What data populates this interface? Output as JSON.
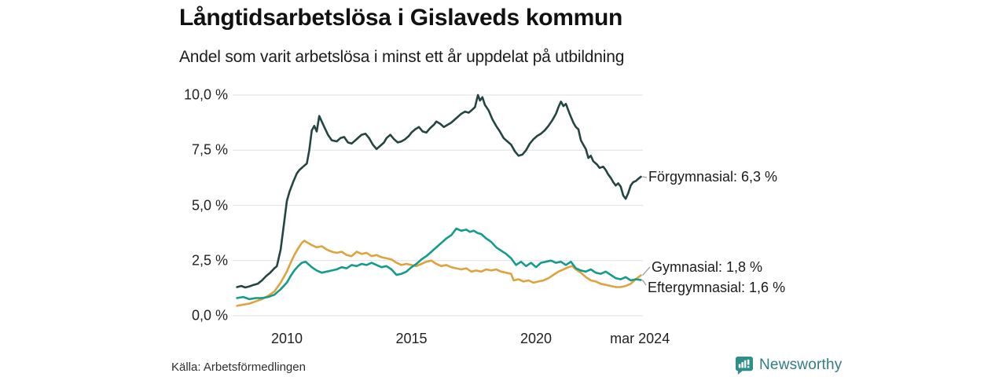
{
  "header": {
    "title": "Långtidsarbetslösa i Gislaveds kommun",
    "subtitle": "Andel som varit arbetslösa i minst ett år uppdelat på utbildning"
  },
  "footer": {
    "source": "Källa: Arbetsförmedlingen",
    "brand": "Newsworthy",
    "brand_icon": "bar-chart-speech-bubble-icon",
    "brand_icon_color": "#2f8e88",
    "brand_text_color": "#337c80"
  },
  "chart_data": {
    "type": "line",
    "title": "Långtidsarbetslösa i Gislaveds kommun",
    "subtitle": "Andel som varit arbetslösa i minst ett år uppdelat på utbildning",
    "unit": "%",
    "grid": {
      "horizontal": true,
      "color": "#e6e6ea"
    },
    "x_axis": {
      "range_years": [
        2008,
        2024.25
      ],
      "ticks": [
        {
          "t": 2010,
          "label": "2010"
        },
        {
          "t": 2015,
          "label": "2015"
        },
        {
          "t": 2020,
          "label": "2020"
        },
        {
          "t": 2024.17,
          "label": "mar 2024"
        }
      ]
    },
    "y_axis": {
      "range": [
        0,
        10
      ],
      "ticks": [
        {
          "v": 10,
          "label": "10,0 %"
        },
        {
          "v": 7.5,
          "label": "7,5 %"
        },
        {
          "v": 5,
          "label": "5,0 %"
        },
        {
          "v": 2.5,
          "label": "2,5 %"
        },
        {
          "v": 0,
          "label": "0,0 %"
        }
      ]
    },
    "series": [
      {
        "name": "Förgymnasial",
        "color": "#244541",
        "latest_value": 6.3,
        "end_label": "Förgymnasial: 6,3 %",
        "points": [
          [
            2008.0,
            1.3
          ],
          [
            2008.17,
            1.35
          ],
          [
            2008.33,
            1.28
          ],
          [
            2008.5,
            1.33
          ],
          [
            2008.67,
            1.4
          ],
          [
            2008.83,
            1.45
          ],
          [
            2009.0,
            1.6
          ],
          [
            2009.17,
            1.8
          ],
          [
            2009.33,
            1.95
          ],
          [
            2009.5,
            2.15
          ],
          [
            2009.6,
            2.25
          ],
          [
            2009.75,
            3.0
          ],
          [
            2009.9,
            4.3
          ],
          [
            2010.0,
            5.2
          ],
          [
            2010.1,
            5.6
          ],
          [
            2010.25,
            6.05
          ],
          [
            2010.4,
            6.45
          ],
          [
            2010.5,
            6.6
          ],
          [
            2010.65,
            6.75
          ],
          [
            2010.8,
            6.9
          ],
          [
            2010.9,
            7.5
          ],
          [
            2011.0,
            8.4
          ],
          [
            2011.1,
            8.6
          ],
          [
            2011.2,
            8.35
          ],
          [
            2011.3,
            9.05
          ],
          [
            2011.4,
            8.8
          ],
          [
            2011.5,
            8.55
          ],
          [
            2011.65,
            8.2
          ],
          [
            2011.8,
            7.95
          ],
          [
            2012.0,
            7.9
          ],
          [
            2012.15,
            8.05
          ],
          [
            2012.3,
            8.1
          ],
          [
            2012.45,
            7.85
          ],
          [
            2012.6,
            7.8
          ],
          [
            2012.75,
            7.95
          ],
          [
            2012.9,
            8.1
          ],
          [
            2013.0,
            8.2
          ],
          [
            2013.15,
            8.25
          ],
          [
            2013.3,
            8.05
          ],
          [
            2013.45,
            7.75
          ],
          [
            2013.6,
            7.55
          ],
          [
            2013.75,
            7.7
          ],
          [
            2013.9,
            7.85
          ],
          [
            2014.0,
            8.05
          ],
          [
            2014.15,
            8.2
          ],
          [
            2014.3,
            8.0
          ],
          [
            2014.45,
            7.85
          ],
          [
            2014.6,
            7.9
          ],
          [
            2014.75,
            8.0
          ],
          [
            2014.9,
            8.15
          ],
          [
            2015.0,
            8.3
          ],
          [
            2015.15,
            8.45
          ],
          [
            2015.3,
            8.55
          ],
          [
            2015.45,
            8.35
          ],
          [
            2015.6,
            8.3
          ],
          [
            2015.75,
            8.5
          ],
          [
            2015.9,
            8.65
          ],
          [
            2016.0,
            8.8
          ],
          [
            2016.15,
            8.7
          ],
          [
            2016.3,
            8.55
          ],
          [
            2016.45,
            8.65
          ],
          [
            2016.6,
            8.75
          ],
          [
            2016.75,
            8.9
          ],
          [
            2016.9,
            9.05
          ],
          [
            2017.0,
            9.15
          ],
          [
            2017.15,
            9.25
          ],
          [
            2017.3,
            9.2
          ],
          [
            2017.45,
            9.35
          ],
          [
            2017.55,
            9.45
          ],
          [
            2017.67,
            10.0
          ],
          [
            2017.75,
            9.75
          ],
          [
            2017.85,
            9.9
          ],
          [
            2017.95,
            9.55
          ],
          [
            2018.1,
            9.3
          ],
          [
            2018.25,
            8.9
          ],
          [
            2018.4,
            8.6
          ],
          [
            2018.55,
            8.35
          ],
          [
            2018.7,
            8.05
          ],
          [
            2018.85,
            7.9
          ],
          [
            2019.0,
            7.75
          ],
          [
            2019.15,
            7.45
          ],
          [
            2019.3,
            7.25
          ],
          [
            2019.45,
            7.3
          ],
          [
            2019.6,
            7.5
          ],
          [
            2019.75,
            7.8
          ],
          [
            2019.9,
            8.0
          ],
          [
            2020.05,
            8.15
          ],
          [
            2020.2,
            8.25
          ],
          [
            2020.35,
            8.4
          ],
          [
            2020.5,
            8.6
          ],
          [
            2020.65,
            8.85
          ],
          [
            2020.8,
            9.15
          ],
          [
            2020.9,
            9.45
          ],
          [
            2021.0,
            9.7
          ],
          [
            2021.1,
            9.5
          ],
          [
            2021.2,
            9.6
          ],
          [
            2021.35,
            9.15
          ],
          [
            2021.5,
            8.75
          ],
          [
            2021.6,
            8.55
          ],
          [
            2021.7,
            8.45
          ],
          [
            2021.8,
            7.95
          ],
          [
            2021.9,
            7.75
          ],
          [
            2022.0,
            7.55
          ],
          [
            2022.1,
            7.15
          ],
          [
            2022.2,
            7.25
          ],
          [
            2022.3,
            7.0
          ],
          [
            2022.45,
            6.85
          ],
          [
            2022.55,
            6.7
          ],
          [
            2022.7,
            6.75
          ],
          [
            2022.8,
            6.6
          ],
          [
            2022.9,
            6.4
          ],
          [
            2023.0,
            6.25
          ],
          [
            2023.1,
            6.05
          ],
          [
            2023.2,
            5.9
          ],
          [
            2023.3,
            6.0
          ],
          [
            2023.4,
            5.85
          ],
          [
            2023.5,
            5.45
          ],
          [
            2023.6,
            5.3
          ],
          [
            2023.7,
            5.55
          ],
          [
            2023.8,
            5.9
          ],
          [
            2023.9,
            6.05
          ],
          [
            2024.0,
            6.1
          ],
          [
            2024.1,
            6.2
          ],
          [
            2024.21,
            6.3
          ]
        ]
      },
      {
        "name": "Gymnasial",
        "color": "#dea33e",
        "latest_value": 1.8,
        "end_label": "Gymnasial: 1,8 %",
        "points": [
          [
            2008.0,
            0.45
          ],
          [
            2008.25,
            0.5
          ],
          [
            2008.5,
            0.55
          ],
          [
            2008.75,
            0.65
          ],
          [
            2009.0,
            0.75
          ],
          [
            2009.25,
            0.9
          ],
          [
            2009.5,
            1.1
          ],
          [
            2009.75,
            1.5
          ],
          [
            2010.0,
            2.0
          ],
          [
            2010.15,
            2.4
          ],
          [
            2010.3,
            2.75
          ],
          [
            2010.45,
            3.05
          ],
          [
            2010.6,
            3.3
          ],
          [
            2010.7,
            3.4
          ],
          [
            2010.85,
            3.3
          ],
          [
            2011.0,
            3.2
          ],
          [
            2011.2,
            3.1
          ],
          [
            2011.4,
            3.15
          ],
          [
            2011.6,
            3.0
          ],
          [
            2011.8,
            2.9
          ],
          [
            2012.0,
            2.85
          ],
          [
            2012.2,
            2.9
          ],
          [
            2012.4,
            2.75
          ],
          [
            2012.6,
            2.7
          ],
          [
            2012.8,
            2.9
          ],
          [
            2013.0,
            2.8
          ],
          [
            2013.2,
            2.85
          ],
          [
            2013.4,
            2.7
          ],
          [
            2013.6,
            2.75
          ],
          [
            2013.8,
            2.65
          ],
          [
            2014.0,
            2.6
          ],
          [
            2014.2,
            2.55
          ],
          [
            2014.4,
            2.4
          ],
          [
            2014.6,
            2.3
          ],
          [
            2014.8,
            2.35
          ],
          [
            2015.0,
            2.3
          ],
          [
            2015.2,
            2.25
          ],
          [
            2015.4,
            2.35
          ],
          [
            2015.6,
            2.45
          ],
          [
            2015.8,
            2.5
          ],
          [
            2016.0,
            2.35
          ],
          [
            2016.2,
            2.25
          ],
          [
            2016.4,
            2.3
          ],
          [
            2016.6,
            2.2
          ],
          [
            2016.8,
            2.15
          ],
          [
            2017.0,
            2.1
          ],
          [
            2017.2,
            2.15
          ],
          [
            2017.4,
            2.0
          ],
          [
            2017.6,
            2.05
          ],
          [
            2017.8,
            2.0
          ],
          [
            2018.0,
            2.1
          ],
          [
            2018.2,
            2.05
          ],
          [
            2018.4,
            2.1
          ],
          [
            2018.6,
            2.0
          ],
          [
            2018.8,
            1.95
          ],
          [
            2019.0,
            1.9
          ],
          [
            2019.1,
            1.6
          ],
          [
            2019.3,
            1.65
          ],
          [
            2019.5,
            1.55
          ],
          [
            2019.7,
            1.6
          ],
          [
            2019.9,
            1.5
          ],
          [
            2020.1,
            1.55
          ],
          [
            2020.3,
            1.6
          ],
          [
            2020.5,
            1.7
          ],
          [
            2020.7,
            1.85
          ],
          [
            2020.9,
            2.0
          ],
          [
            2021.1,
            2.1
          ],
          [
            2021.3,
            2.2
          ],
          [
            2021.45,
            2.25
          ],
          [
            2021.6,
            2.1
          ],
          [
            2021.8,
            1.95
          ],
          [
            2022.0,
            1.75
          ],
          [
            2022.2,
            1.6
          ],
          [
            2022.4,
            1.55
          ],
          [
            2022.6,
            1.45
          ],
          [
            2022.8,
            1.4
          ],
          [
            2023.0,
            1.35
          ],
          [
            2023.2,
            1.3
          ],
          [
            2023.4,
            1.3
          ],
          [
            2023.6,
            1.35
          ],
          [
            2023.8,
            1.45
          ],
          [
            2024.0,
            1.65
          ],
          [
            2024.21,
            1.83
          ]
        ]
      },
      {
        "name": "Eftergymnasial",
        "color": "#149c8b",
        "latest_value": 1.6,
        "end_label": "Eftergymnasial: 1,6 %",
        "points": [
          [
            2008.0,
            0.8
          ],
          [
            2008.25,
            0.85
          ],
          [
            2008.5,
            0.75
          ],
          [
            2008.75,
            0.8
          ],
          [
            2009.0,
            0.8
          ],
          [
            2009.25,
            0.85
          ],
          [
            2009.5,
            0.95
          ],
          [
            2009.75,
            1.2
          ],
          [
            2010.0,
            1.5
          ],
          [
            2010.15,
            1.8
          ],
          [
            2010.3,
            2.05
          ],
          [
            2010.45,
            2.25
          ],
          [
            2010.6,
            2.4
          ],
          [
            2010.75,
            2.45
          ],
          [
            2010.9,
            2.3
          ],
          [
            2011.0,
            2.2
          ],
          [
            2011.2,
            2.05
          ],
          [
            2011.4,
            1.95
          ],
          [
            2011.6,
            2.0
          ],
          [
            2011.8,
            2.05
          ],
          [
            2012.0,
            2.1
          ],
          [
            2012.2,
            2.2
          ],
          [
            2012.4,
            2.15
          ],
          [
            2012.6,
            2.3
          ],
          [
            2012.8,
            2.25
          ],
          [
            2013.0,
            2.35
          ],
          [
            2013.2,
            2.3
          ],
          [
            2013.4,
            2.4
          ],
          [
            2013.6,
            2.3
          ],
          [
            2013.8,
            2.2
          ],
          [
            2014.0,
            2.25
          ],
          [
            2014.2,
            2.1
          ],
          [
            2014.4,
            1.85
          ],
          [
            2014.6,
            1.9
          ],
          [
            2014.8,
            2.0
          ],
          [
            2015.0,
            2.2
          ],
          [
            2015.2,
            2.35
          ],
          [
            2015.4,
            2.55
          ],
          [
            2015.6,
            2.7
          ],
          [
            2015.8,
            2.9
          ],
          [
            2016.0,
            3.1
          ],
          [
            2016.2,
            3.3
          ],
          [
            2016.4,
            3.5
          ],
          [
            2016.6,
            3.65
          ],
          [
            2016.8,
            3.95
          ],
          [
            2017.0,
            3.85
          ],
          [
            2017.2,
            3.9
          ],
          [
            2017.35,
            3.8
          ],
          [
            2017.5,
            3.85
          ],
          [
            2017.65,
            3.75
          ],
          [
            2017.8,
            3.7
          ],
          [
            2018.0,
            3.5
          ],
          [
            2018.2,
            3.35
          ],
          [
            2018.4,
            3.1
          ],
          [
            2018.6,
            2.95
          ],
          [
            2018.8,
            2.8
          ],
          [
            2019.0,
            2.6
          ],
          [
            2019.2,
            2.3
          ],
          [
            2019.4,
            2.45
          ],
          [
            2019.6,
            2.25
          ],
          [
            2019.8,
            2.4
          ],
          [
            2020.0,
            2.2
          ],
          [
            2020.2,
            2.4
          ],
          [
            2020.4,
            2.45
          ],
          [
            2020.6,
            2.5
          ],
          [
            2020.8,
            2.4
          ],
          [
            2021.0,
            2.45
          ],
          [
            2021.2,
            2.3
          ],
          [
            2021.4,
            2.45
          ],
          [
            2021.6,
            2.15
          ],
          [
            2021.8,
            2.05
          ],
          [
            2022.0,
            2.0
          ],
          [
            2022.2,
            2.1
          ],
          [
            2022.4,
            1.95
          ],
          [
            2022.6,
            1.9
          ],
          [
            2022.8,
            2.0
          ],
          [
            2023.0,
            1.85
          ],
          [
            2023.2,
            1.7
          ],
          [
            2023.4,
            1.65
          ],
          [
            2023.6,
            1.75
          ],
          [
            2023.8,
            1.6
          ],
          [
            2024.0,
            1.65
          ],
          [
            2024.21,
            1.62
          ]
        ]
      }
    ]
  }
}
